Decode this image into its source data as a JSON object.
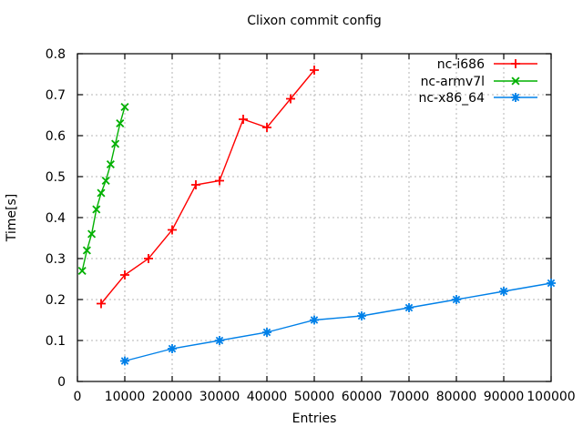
{
  "window": {
    "background": "#ffffff"
  },
  "chart_data": {
    "type": "line",
    "title": "Clixon commit config",
    "xlabel": "Entries",
    "ylabel": "Time[s]",
    "xlim": [
      0,
      100000
    ],
    "ylim": [
      0,
      0.8
    ],
    "x_ticks": [
      "0",
      "10000",
      "20000",
      "30000",
      "40000",
      "50000",
      "60000",
      "70000",
      "80000",
      "90000",
      "100000"
    ],
    "y_ticks": [
      "0",
      "0.1",
      "0.2",
      "0.3",
      "0.4",
      "0.5",
      "0.6",
      "0.7",
      "0.8"
    ],
    "grid": true,
    "legend_position": "top-right-inside",
    "series": [
      {
        "name": "nc-i686",
        "color": "#ff0000",
        "marker": "plus",
        "x": [
          5000,
          10000,
          15000,
          20000,
          25000,
          30000,
          35000,
          40000,
          45000,
          50000
        ],
        "y": [
          0.19,
          0.26,
          0.3,
          0.37,
          0.48,
          0.49,
          0.64,
          0.62,
          0.69,
          0.76
        ]
      },
      {
        "name": "nc-armv7l",
        "color": "#00b000",
        "marker": "cross",
        "x": [
          1000,
          2000,
          3000,
          4000,
          5000,
          6000,
          7000,
          8000,
          9000,
          10000
        ],
        "y": [
          0.27,
          0.32,
          0.36,
          0.42,
          0.46,
          0.49,
          0.53,
          0.58,
          0.63,
          0.67
        ]
      },
      {
        "name": "nc-x86_64",
        "color": "#0080e8",
        "marker": "star",
        "x": [
          10000,
          20000,
          30000,
          40000,
          50000,
          60000,
          70000,
          80000,
          90000,
          100000
        ],
        "y": [
          0.05,
          0.08,
          0.1,
          0.12,
          0.15,
          0.16,
          0.18,
          0.2,
          0.22,
          0.24
        ]
      }
    ],
    "colors": {
      "grid": "#b4b4b4",
      "axis": "#000000",
      "text": "#000000"
    }
  }
}
